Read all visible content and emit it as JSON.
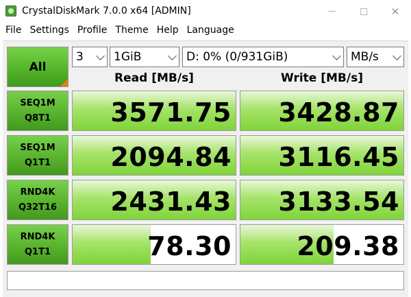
{
  "window": {
    "title": "CrystalDiskMark 7.0.0 x64 [ADMIN]",
    "icon": "crystaldiskmark-app-icon",
    "controls": [
      "minimize-icon",
      "maximize-icon",
      "close-icon"
    ]
  },
  "menu": [
    "File",
    "Settings",
    "Profile",
    "Theme",
    "Help",
    "Language"
  ],
  "controls": {
    "all_label": "All",
    "count": "3",
    "size": "1GiB",
    "drive": "D: 0% (0/931GiB)",
    "unit": "MB/s"
  },
  "headers": {
    "read": "Read [MB/s]",
    "write": "Write [MB/s]"
  },
  "tests": [
    {
      "line1": "SEQ1M",
      "line2": "Q8T1",
      "read": "3571.75",
      "write": "3428.87",
      "read_fill": 1.0,
      "write_fill": 1.0
    },
    {
      "line1": "SEQ1M",
      "line2": "Q1T1",
      "read": "2094.84",
      "write": "3116.45",
      "read_fill": 1.0,
      "write_fill": 1.0
    },
    {
      "line1": "RND4K",
      "line2": "Q32T16",
      "read": "2431.43",
      "write": "3133.54",
      "read_fill": 1.0,
      "write_fill": 1.0
    },
    {
      "line1": "RND4K",
      "line2": "Q1T1",
      "read": "78.30",
      "write": "209.38",
      "read_fill": 0.48,
      "write_fill": 0.57
    }
  ],
  "colors": {
    "accent_green": "#55b52a",
    "bar_green": "#7fd43a",
    "corner_orange": "#f07a10"
  },
  "status_text": ""
}
